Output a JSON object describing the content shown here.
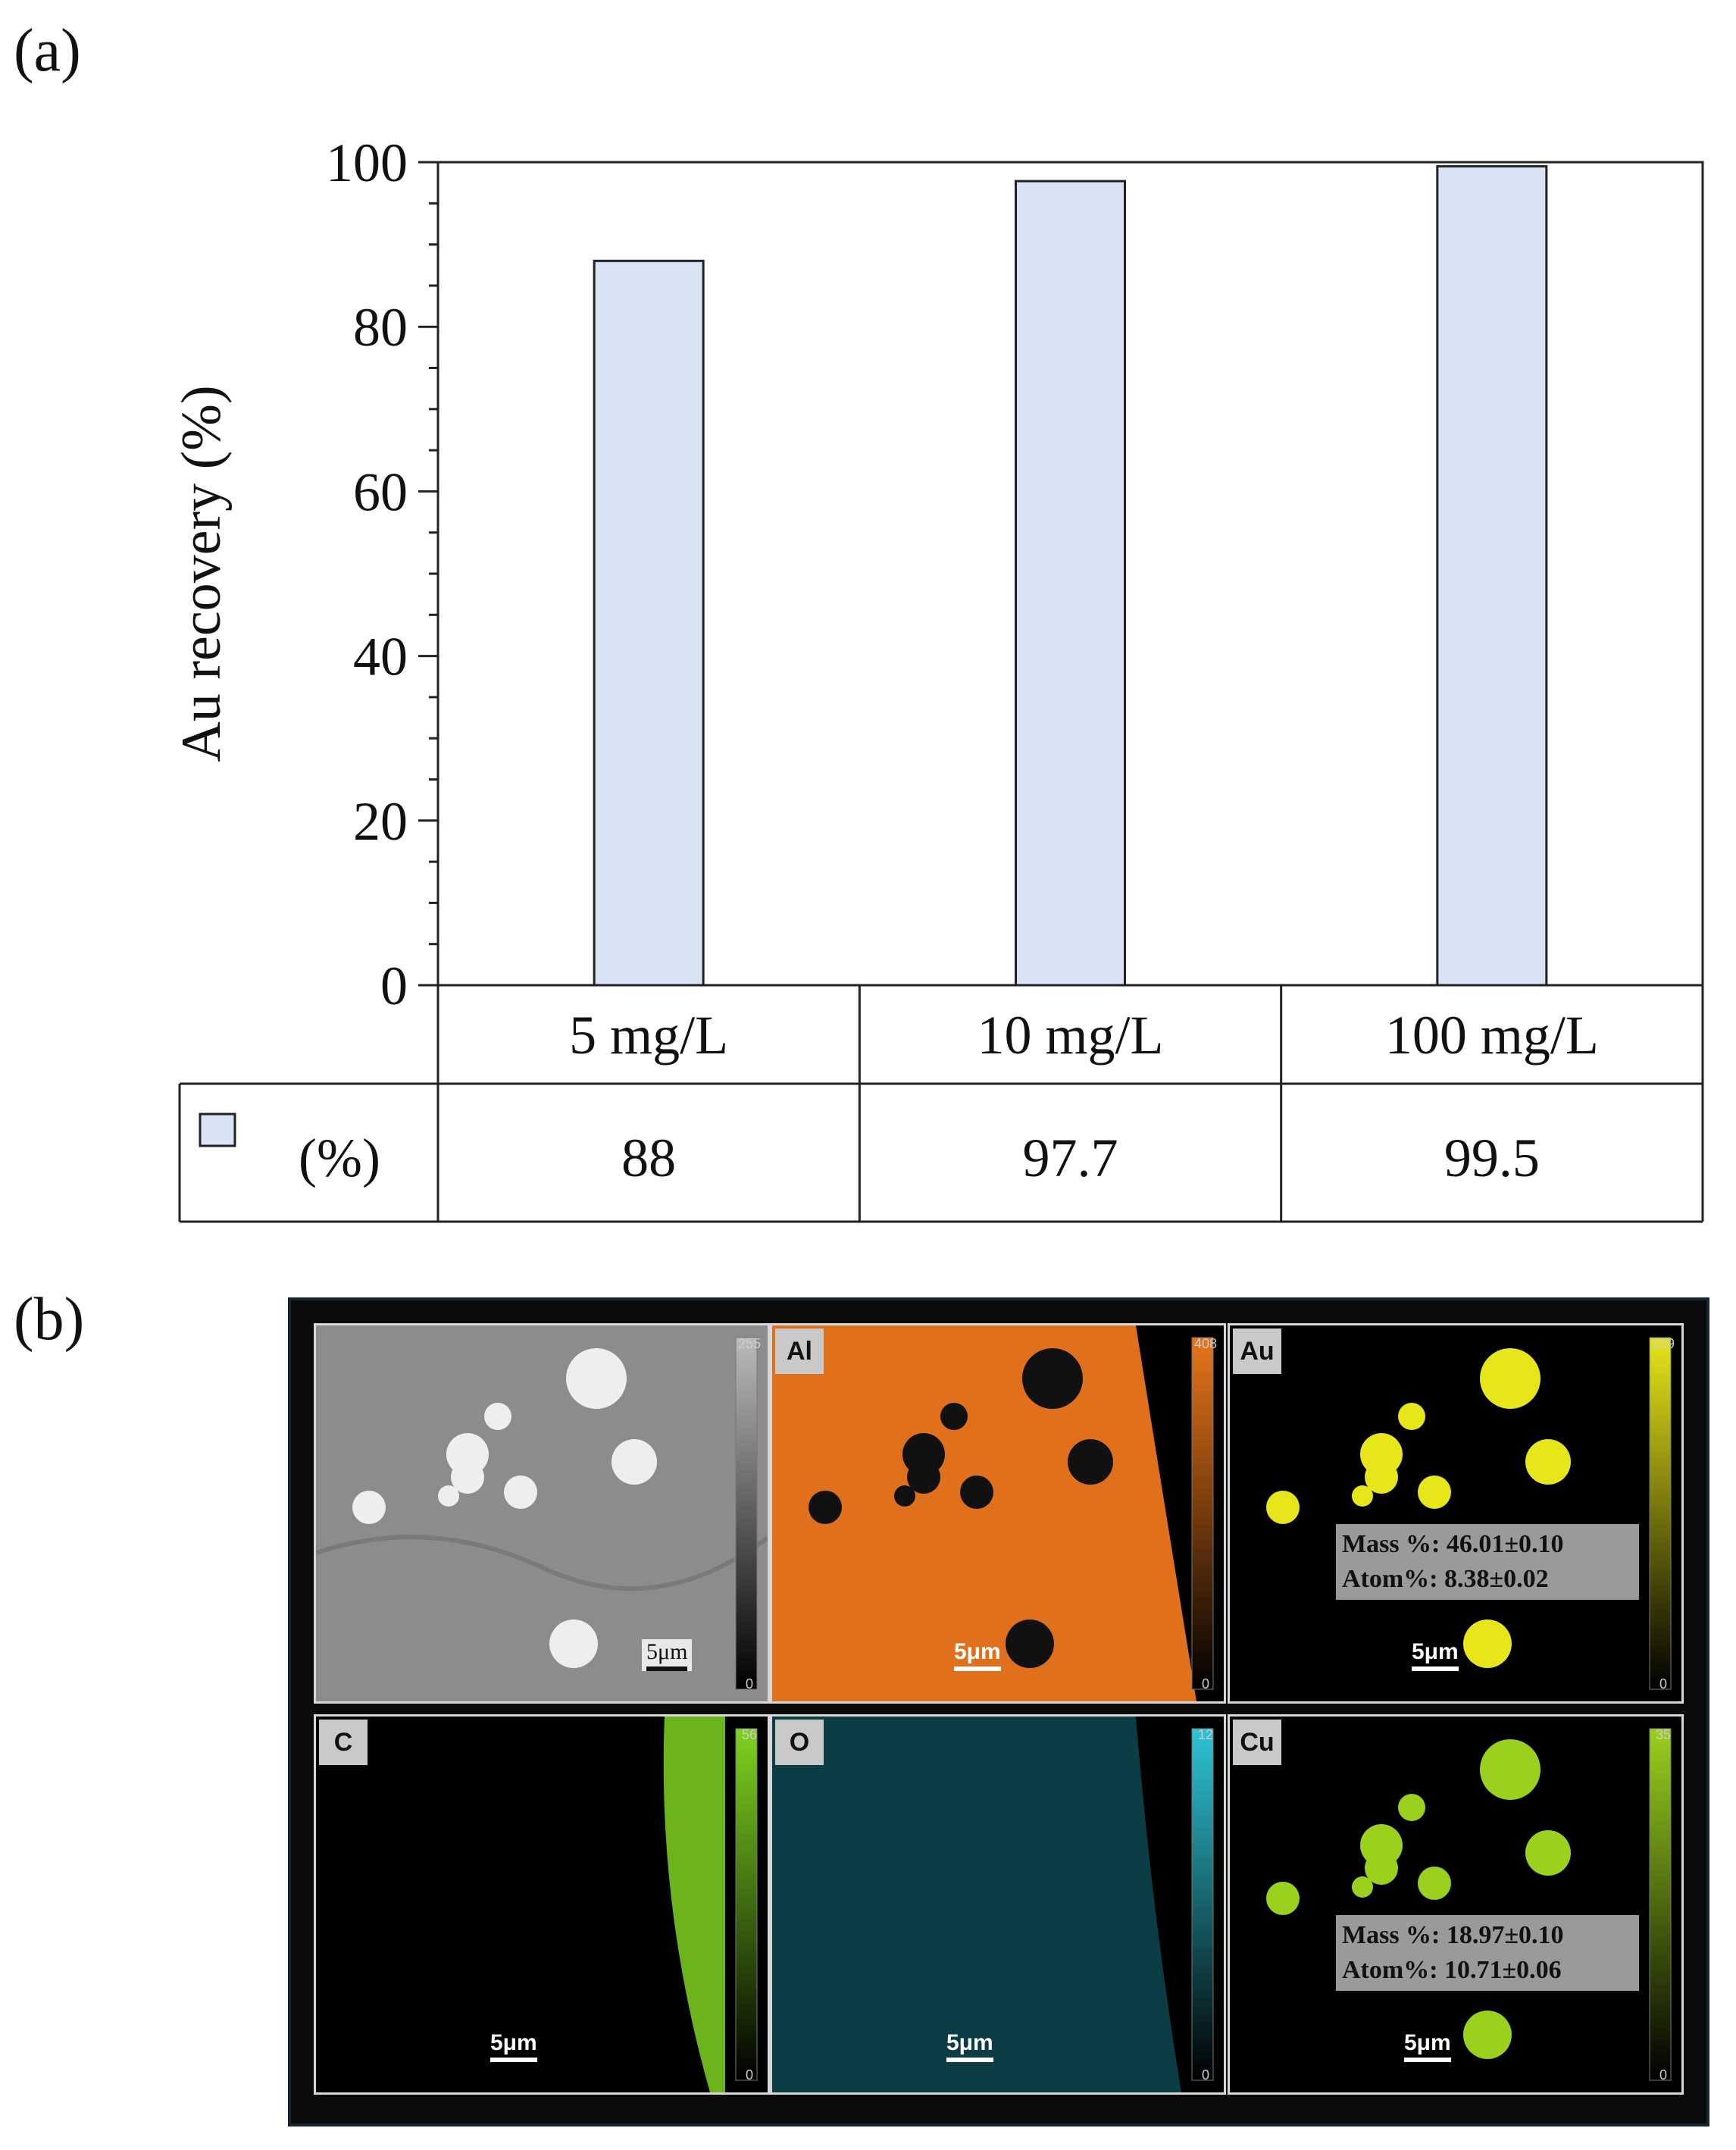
{
  "panel_a": {
    "label": "(a)",
    "chart_data": {
      "type": "bar",
      "categories": [
        "5 mg/L",
        "10 mg/L",
        "100 mg/L"
      ],
      "series": [
        {
          "name": "(%)",
          "values": [
            88,
            97.7,
            99.5
          ],
          "color": "#dae3f3"
        }
      ],
      "title": "",
      "xlabel": "",
      "ylabel": "Au recovery (%)",
      "ylim": [
        0,
        100
      ],
      "yticks": [
        0,
        20,
        40,
        60,
        80,
        100
      ],
      "grid": false,
      "data_table": true
    }
  },
  "panel_b": {
    "label": "(b)",
    "tiles": [
      {
        "element": "",
        "max": "255",
        "min": "0",
        "scale": "5μm",
        "color": "#bbbbbb"
      },
      {
        "element": "Al",
        "max": "408",
        "min": "0",
        "scale": "5μm",
        "color": "#e8751a"
      },
      {
        "element": "Au",
        "max": "109",
        "min": "0",
        "scale": "5μm",
        "color": "#e6e61a",
        "stats": {
          "mass": "Mass %: 46.01±0.10",
          "atom": "Atom%: 8.38±0.02"
        }
      },
      {
        "element": "C",
        "max": "56",
        "min": "0",
        "scale": "5μm",
        "color": "#7ed321"
      },
      {
        "element": "O",
        "max": "12",
        "min": "0",
        "scale": "5μm",
        "color": "#2ec4d6"
      },
      {
        "element": "Cu",
        "max": "35",
        "min": "0",
        "scale": "5μm",
        "color": "#9ad01e",
        "stats": {
          "mass": "Mass %: 18.97±0.10",
          "atom": "Atom%: 10.71±0.06"
        }
      }
    ]
  }
}
